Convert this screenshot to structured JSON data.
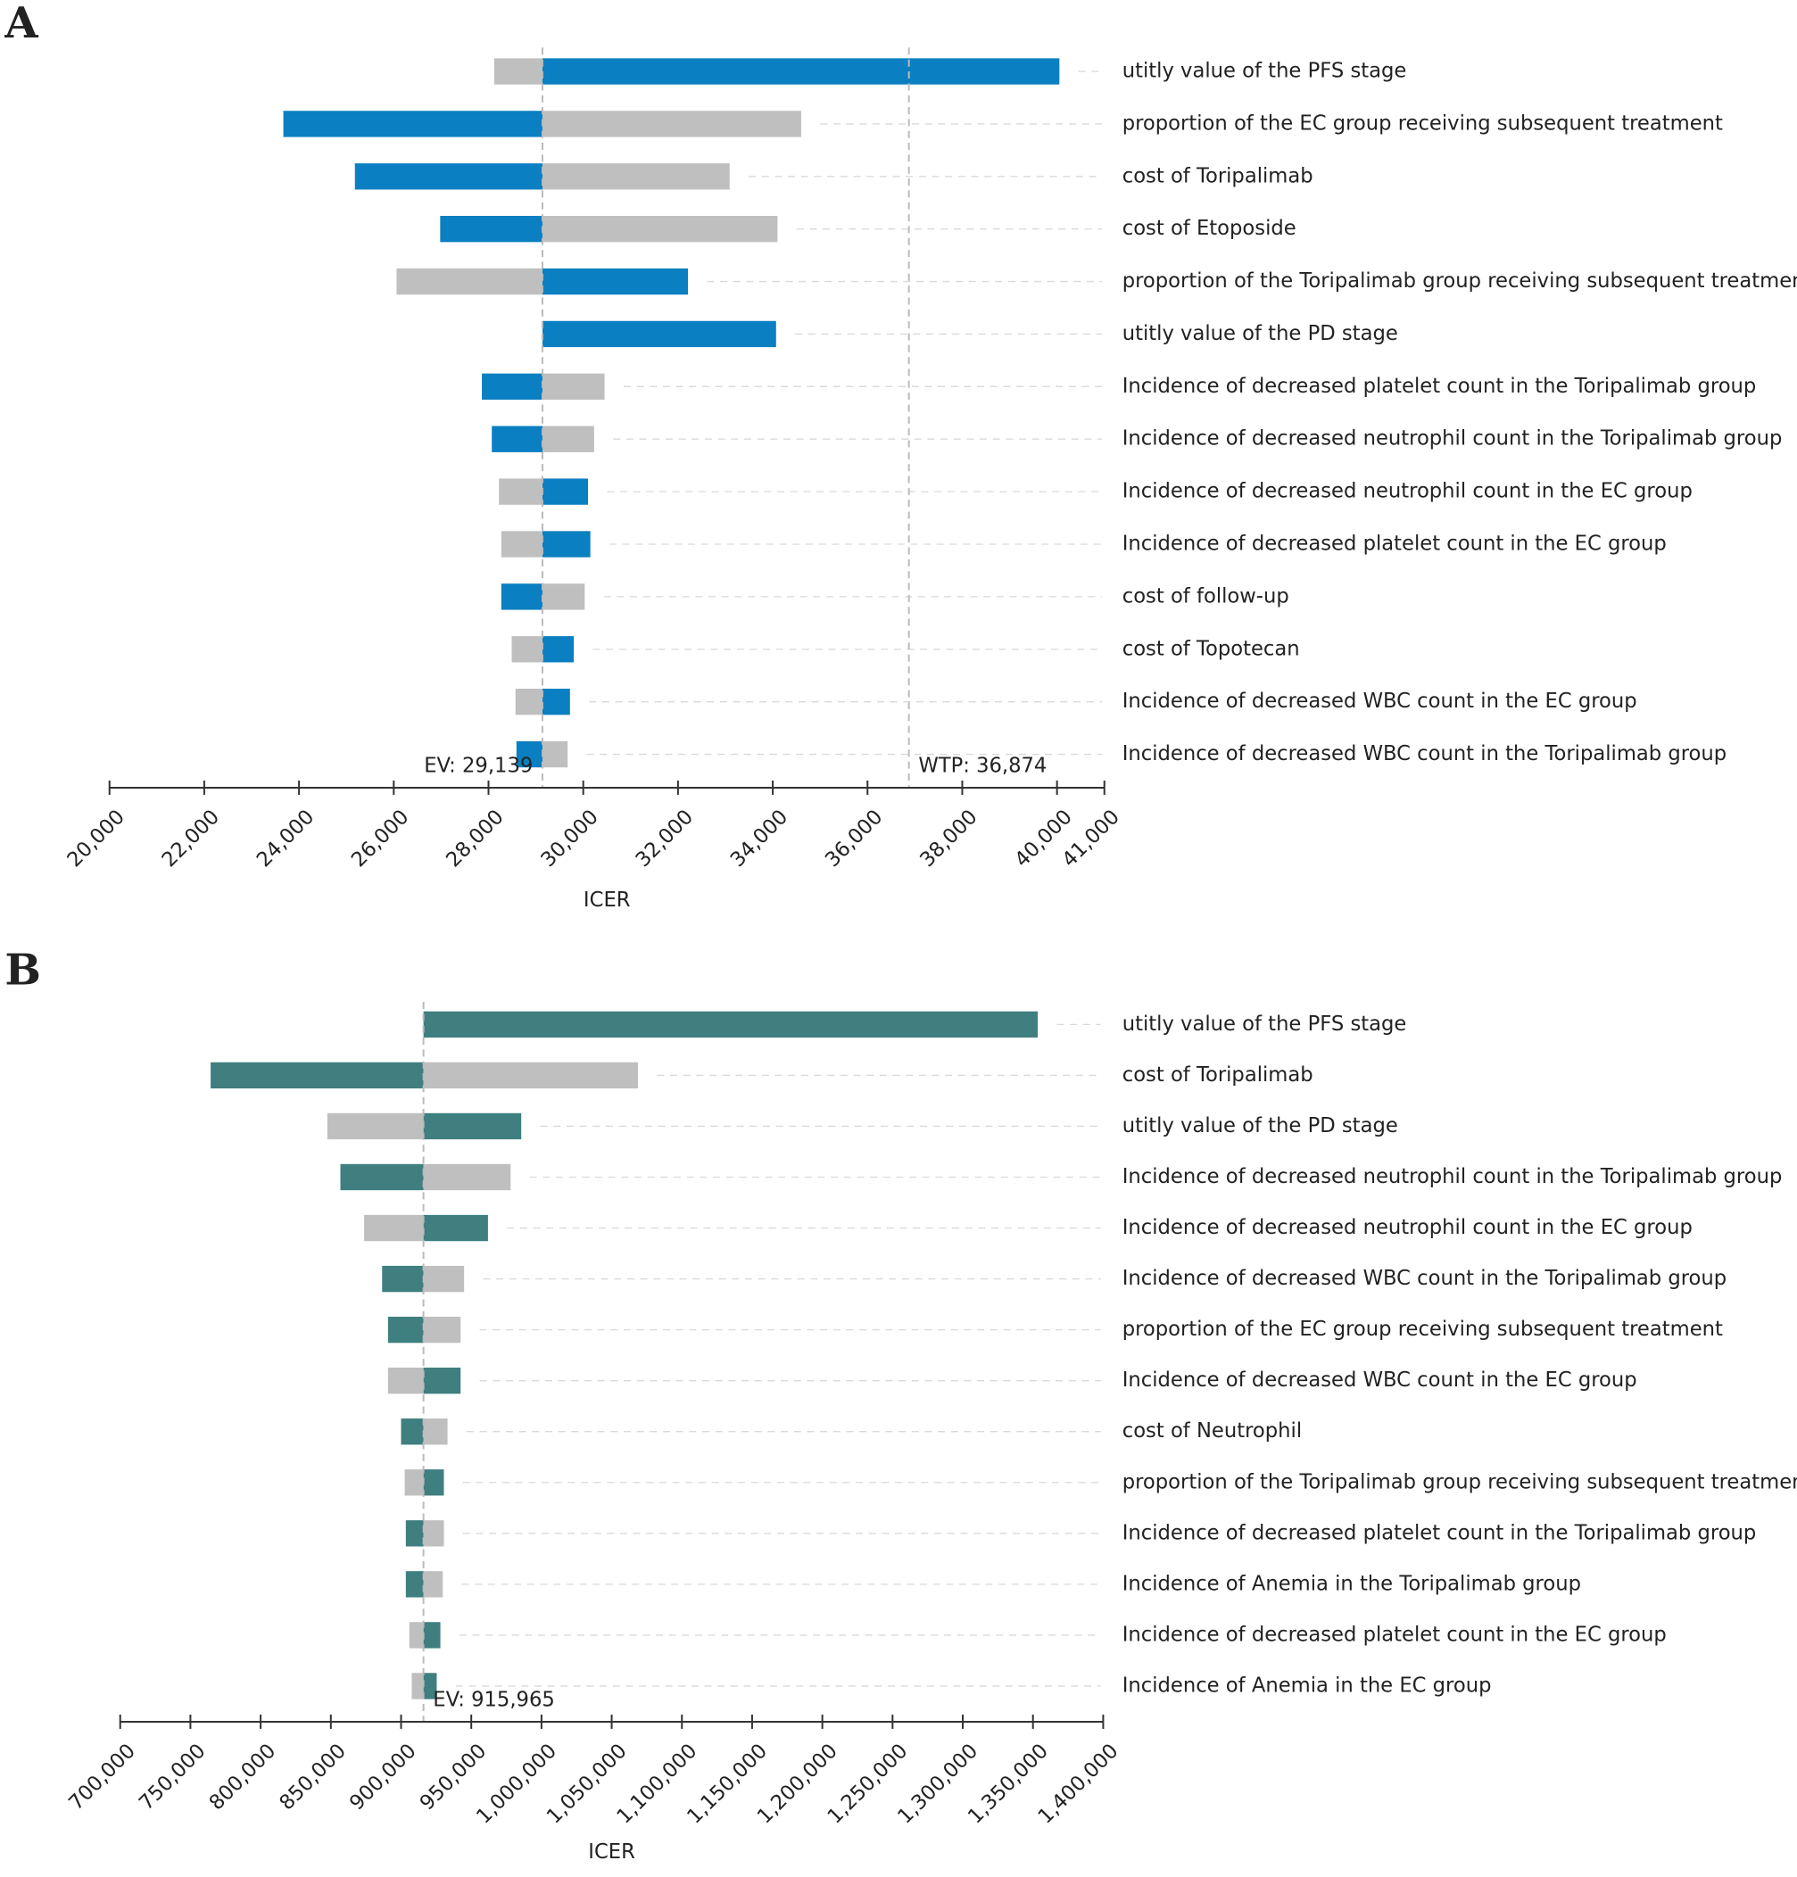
{
  "chart_data": [
    {
      "type": "tornado",
      "panel_label": "A",
      "xlabel": "ICER",
      "categories": [
        "utitly value of the PFS stage",
        "proportion of the EC group receiving subsequent treatment",
        "cost of Toripalimab",
        "cost of Etoposide",
        "proportion of the Toripalimab group receiving subsequent treatment",
        "utitly value of the PD stage",
        "Incidence of decreased platelet count in the Toripalimab group",
        "Incidence of decreased neutrophil count in the Toripalimab group",
        "Incidence of decreased neutrophil count in the EC group",
        "Incidence of decreased platelet count in the EC group",
        "cost of follow-up",
        "cost of Topotecan",
        "Incidence of decreased WBC count in the EC group",
        "Incidence of decreased WBC count in the Toripalimab group"
      ],
      "series": [
        {
          "color": "#0a7fc1",
          "values": [
            40050,
            23670,
            25180,
            26980,
            32210,
            34070,
            27860,
            28070,
            30100,
            30150,
            28270,
            29800,
            29720,
            28590
          ]
        },
        {
          "color": "#bfbfbf",
          "values": [
            28120,
            34600,
            33090,
            34100,
            26060,
            29139,
            30450,
            30230,
            28220,
            28270,
            30030,
            28490,
            28570,
            29670
          ]
        }
      ],
      "ev": {
        "value": 29139,
        "label": "EV: 29,139"
      },
      "wtp": {
        "value": 36874,
        "label": "WTP: 36,874"
      },
      "xlim": [
        20000,
        41000
      ],
      "xticks": [
        {
          "value": 20000,
          "label": "20,000"
        },
        {
          "value": 22000,
          "label": "22,000"
        },
        {
          "value": 24000,
          "label": "24,000"
        },
        {
          "value": 26000,
          "label": "26,000"
        },
        {
          "value": 28000,
          "label": "28,000"
        },
        {
          "value": 30000,
          "label": "30,000"
        },
        {
          "value": 32000,
          "label": "32,000"
        },
        {
          "value": 34000,
          "label": "34,000"
        },
        {
          "value": 36000,
          "label": "36,000"
        },
        {
          "value": 38000,
          "label": "38,000"
        },
        {
          "value": 40000,
          "label": "40,000"
        },
        {
          "value": 41000,
          "label": "41,000"
        }
      ]
    },
    {
      "type": "tornado",
      "panel_label": "B",
      "xlabel": "ICER",
      "categories": [
        "utitly value of the PFS stage",
        "cost of Toripalimab",
        "utitly value of the PD stage",
        "Incidence of decreased neutrophil count in the Toripalimab group",
        "Incidence of decreased neutrophil count in the EC group",
        "Incidence of decreased WBC count in the Toripalimab group",
        "proportion of the EC group receiving subsequent treatment",
        "Incidence of decreased WBC count in the EC group",
        "cost of Neutrophil",
        "proportion of the Toripalimab group receiving subsequent treatment",
        "Incidence of decreased platelet count in the Toripalimab group",
        "Incidence of Anemia in the Toripalimab group",
        "Incidence of decreased platelet count in the EC group",
        "Incidence of Anemia in the EC group"
      ],
      "series": [
        {
          "color": "#3f7f7f",
          "values": [
            1353400,
            764400,
            985600,
            856800,
            961900,
            886500,
            890700,
            942400,
            900000,
            930500,
            903400,
            903400,
            928000,
            925400
          ]
        },
        {
          "color": "#bfbfbf",
          "values": [
            915965,
            1068700,
            847500,
            978000,
            873700,
            944900,
            942400,
            890700,
            933100,
            902600,
            930500,
            929700,
            905900,
            907600
          ]
        }
      ],
      "ev": {
        "value": 915965,
        "label": "EV: 915,965"
      },
      "xlim": [
        700000,
        1400000
      ],
      "xticks": [
        {
          "value": 700000,
          "label": "700,000"
        },
        {
          "value": 750000,
          "label": "750,000"
        },
        {
          "value": 800000,
          "label": "800,000"
        },
        {
          "value": 850000,
          "label": "850,000"
        },
        {
          "value": 900000,
          "label": "900,000"
        },
        {
          "value": 950000,
          "label": "950,000"
        },
        {
          "value": 1000000,
          "label": "1,000,000"
        },
        {
          "value": 1050000,
          "label": "1,050,000"
        },
        {
          "value": 1100000,
          "label": "1,100,000"
        },
        {
          "value": 1150000,
          "label": "1,150,000"
        },
        {
          "value": 1200000,
          "label": "1,200,000"
        },
        {
          "value": 1250000,
          "label": "1,250,000"
        },
        {
          "value": 1300000,
          "label": "1,300,000"
        },
        {
          "value": 1350000,
          "label": "1,350,000"
        },
        {
          "value": 1400000,
          "label": "1,400,000"
        }
      ]
    }
  ]
}
